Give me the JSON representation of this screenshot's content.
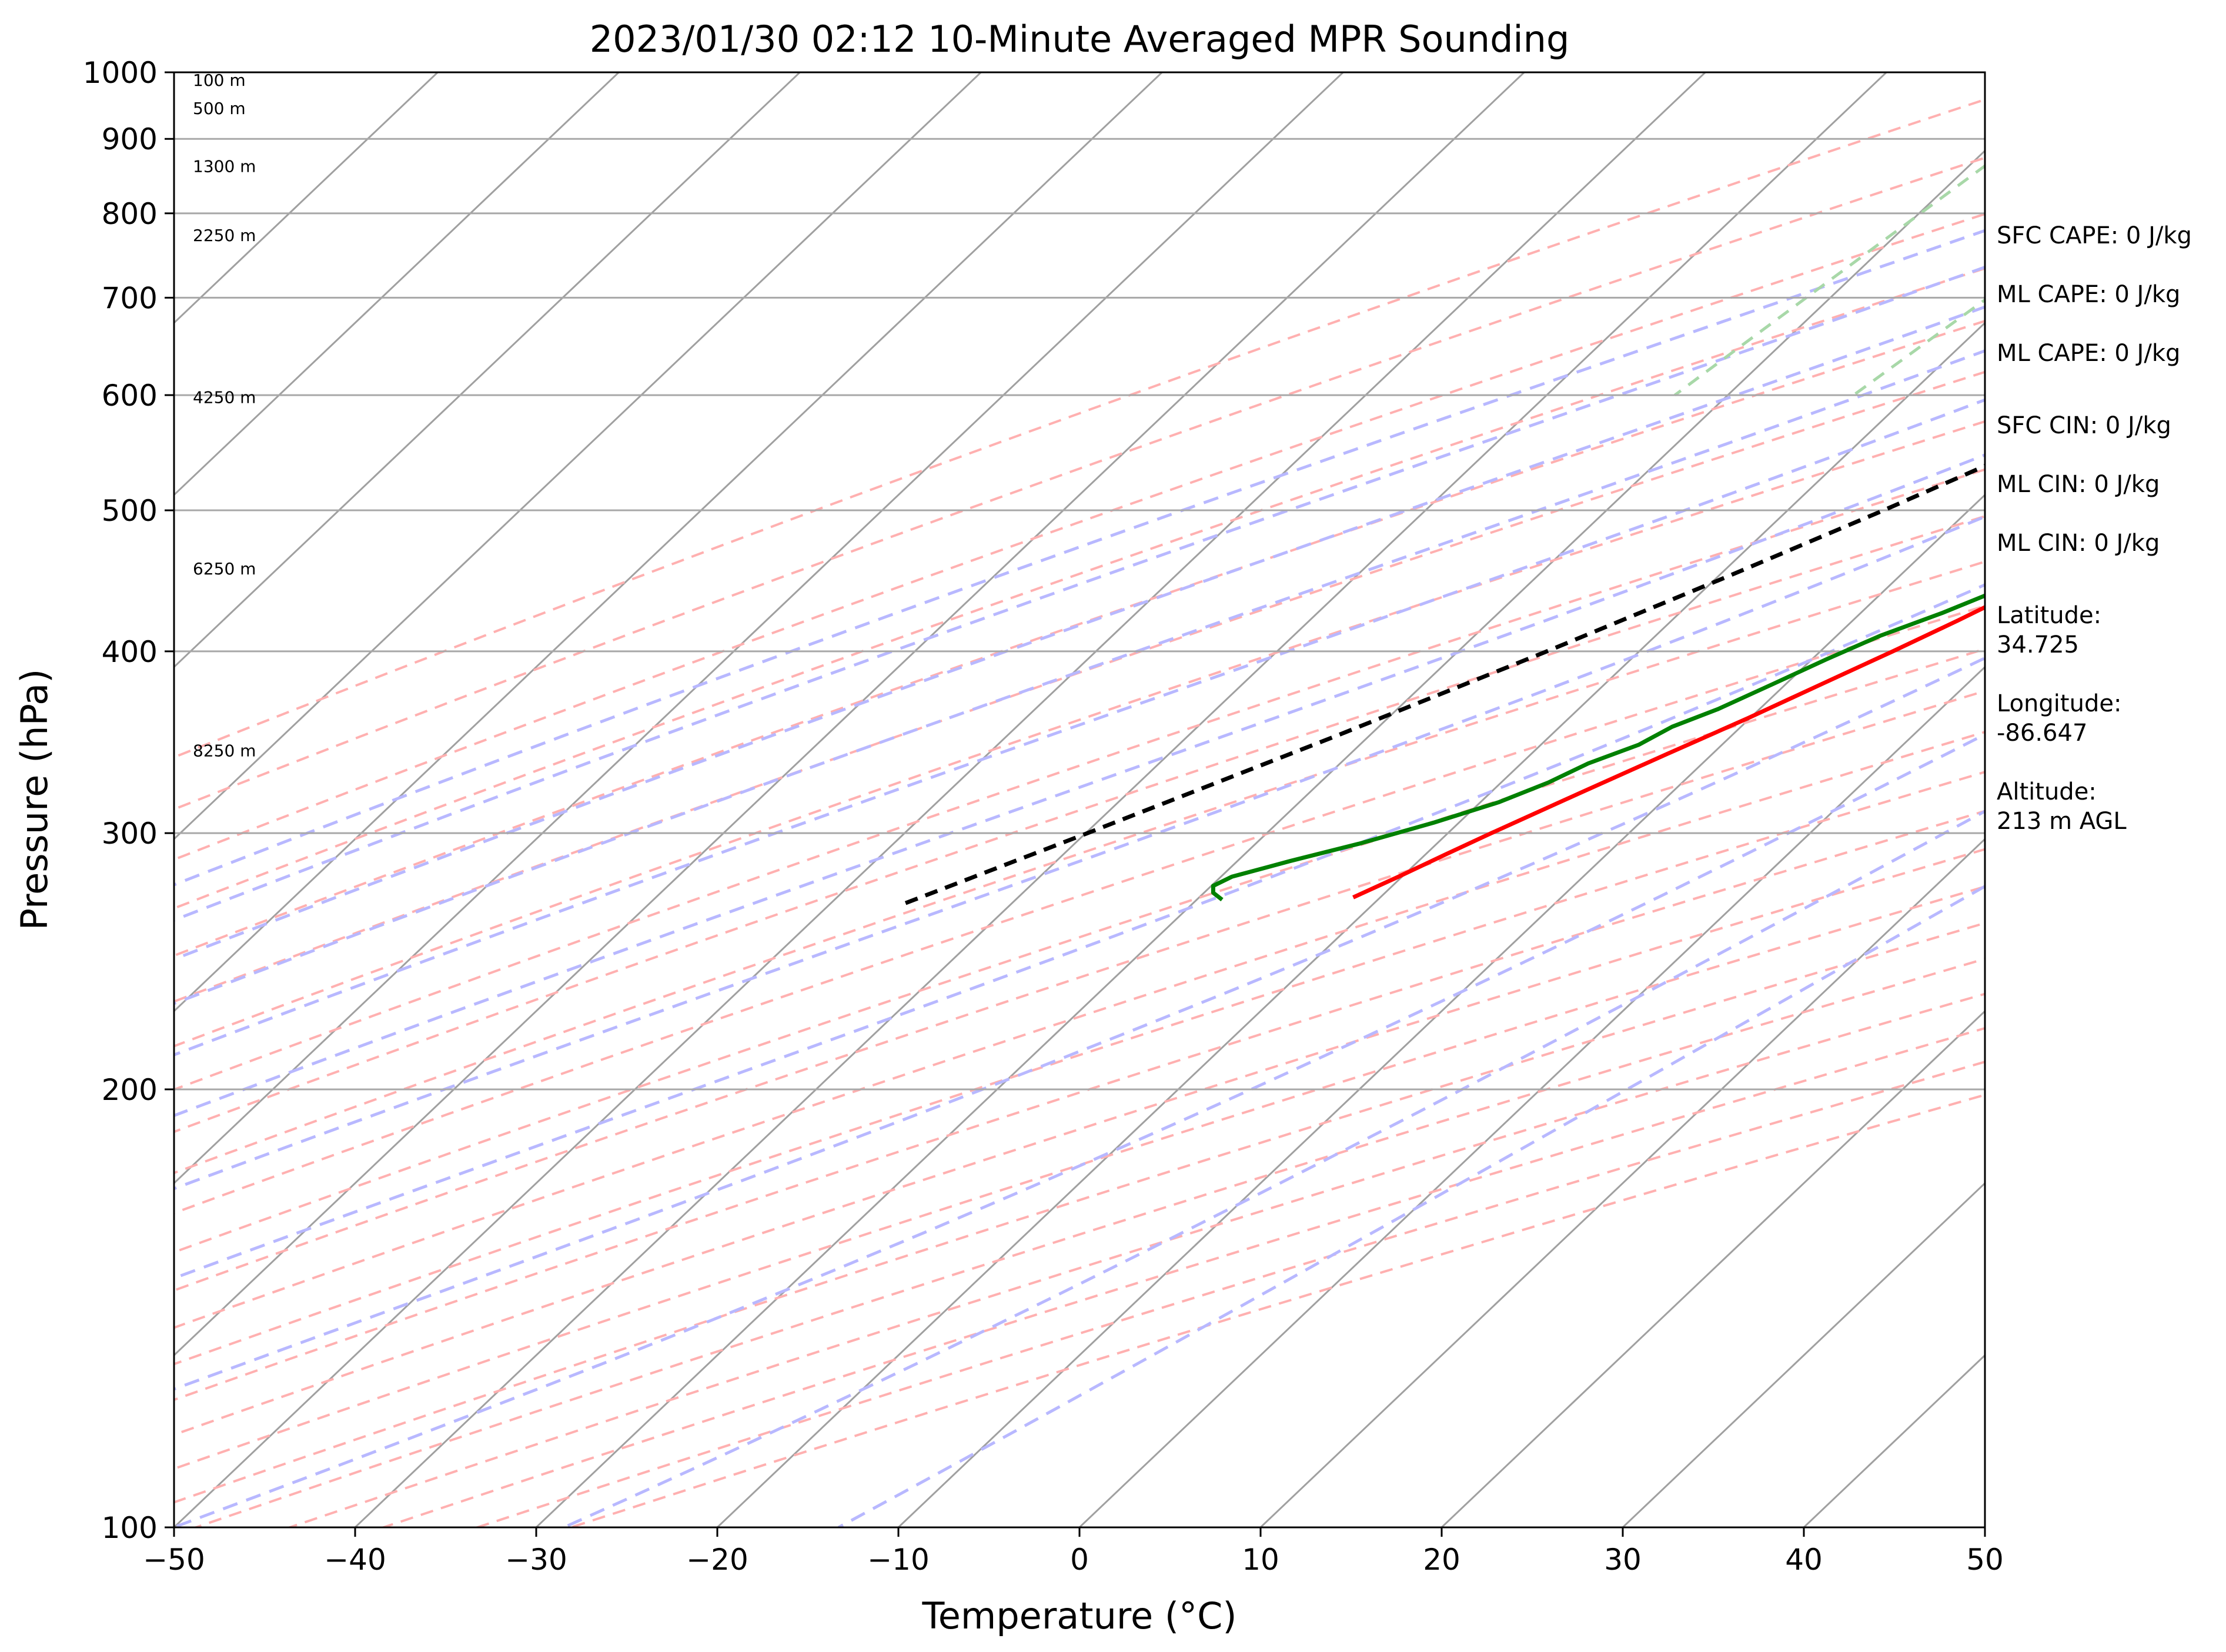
{
  "chart_data": {
    "type": "line",
    "title": "2023/01/30 02:12 10-Minute Averaged MPR Sounding",
    "xlabel": "Temperature (°C)",
    "ylabel": "Pressure (hPa)",
    "xlim": [
      -50,
      50
    ],
    "ylim": [
      1000,
      100
    ],
    "y_scale": "log",
    "grid": "on",
    "x_ticks": [
      "−50",
      "−40",
      "−30",
      "−20",
      "−10",
      "0",
      "10",
      "20",
      "30",
      "40",
      "50"
    ],
    "y_ticks": [
      "100",
      "200",
      "300",
      "400",
      "500",
      "600",
      "700",
      "800",
      "900",
      "1000"
    ],
    "height_labels": [
      {
        "label": "100 m",
        "pressure": 988
      },
      {
        "label": "500 m",
        "pressure": 945
      },
      {
        "label": "1300 m",
        "pressure": 862
      },
      {
        "label": "2250 m",
        "pressure": 773
      },
      {
        "label": "4250 m",
        "pressure": 598
      },
      {
        "label": "6250 m",
        "pressure": 456
      },
      {
        "label": "8250 m",
        "pressure": 342
      }
    ],
    "series": [
      {
        "name": "Temperature",
        "color": "#ff0000",
        "points": [
          [
            1000,
            10.2
          ],
          [
            990,
            11.6
          ],
          [
            975,
            12.8
          ],
          [
            960,
            13.9
          ],
          [
            945,
            14.5
          ],
          [
            930,
            14.6
          ],
          [
            915,
            14.4
          ],
          [
            900,
            14.1
          ],
          [
            880,
            13.6
          ],
          [
            860,
            13.1
          ],
          [
            840,
            12.5
          ],
          [
            820,
            11.8
          ],
          [
            800,
            11.0
          ],
          [
            780,
            10.4
          ],
          [
            760,
            9.8
          ],
          [
            740,
            9.2
          ],
          [
            720,
            8.6
          ],
          [
            700,
            8.0
          ],
          [
            680,
            7.5
          ],
          [
            660,
            7.0
          ],
          [
            640,
            6.6
          ],
          [
            620,
            6.2
          ],
          [
            600,
            5.6
          ],
          [
            580,
            4.8
          ],
          [
            560,
            3.8
          ],
          [
            540,
            2.9
          ],
          [
            520,
            1.9
          ],
          [
            500,
            0.8
          ],
          [
            480,
            -0.2
          ],
          [
            460,
            -1.3
          ],
          [
            440,
            -2.6
          ],
          [
            420,
            -4.2
          ],
          [
            400,
            -6.0
          ],
          [
            380,
            -8.0
          ],
          [
            360,
            -10.1
          ],
          [
            340,
            -12.5
          ],
          [
            320,
            -15.0
          ],
          [
            300,
            -17.6
          ],
          [
            290,
            -18.9
          ],
          [
            280,
            -20.2
          ],
          [
            271,
            -21.5
          ]
        ]
      },
      {
        "name": "Dewpoint",
        "color": "#008000",
        "points": [
          [
            1000,
            10.1
          ],
          [
            980,
            10.0
          ],
          [
            960,
            10.0
          ],
          [
            945,
            9.6
          ],
          [
            930,
            9.2
          ],
          [
            915,
            9.1
          ],
          [
            900,
            8.9
          ],
          [
            880,
            8.5
          ],
          [
            865,
            8.0
          ],
          [
            850,
            8.3
          ],
          [
            835,
            8.1
          ],
          [
            820,
            8.5
          ],
          [
            800,
            8.4
          ],
          [
            780,
            8.0
          ],
          [
            760,
            7.3
          ],
          [
            740,
            6.8
          ],
          [
            720,
            6.5
          ],
          [
            700,
            6.3
          ],
          [
            690,
            5.8
          ],
          [
            670,
            4.5
          ],
          [
            660,
            4.2
          ],
          [
            640,
            4.5
          ],
          [
            620,
            4.7
          ],
          [
            600,
            4.7
          ],
          [
            580,
            4.0
          ],
          [
            560,
            3.0
          ],
          [
            540,
            2.0
          ],
          [
            520,
            1.1
          ],
          [
            500,
            0.3
          ],
          [
            480,
            -0.7
          ],
          [
            460,
            -2.0
          ],
          [
            440,
            -3.8
          ],
          [
            425,
            -5.5
          ],
          [
            410,
            -7.6
          ],
          [
            395,
            -9.2
          ],
          [
            380,
            -10.7
          ],
          [
            365,
            -12.3
          ],
          [
            355,
            -13.8
          ],
          [
            345,
            -14.6
          ],
          [
            335,
            -16.3
          ],
          [
            325,
            -17.4
          ],
          [
            315,
            -19.0
          ],
          [
            305,
            -21.4
          ],
          [
            295,
            -24.3
          ],
          [
            287,
            -27.1
          ],
          [
            280,
            -29.4
          ],
          [
            276,
            -29.9
          ],
          [
            273,
            -29.5
          ],
          [
            270,
            -28.6
          ]
        ]
      },
      {
        "name": "Parcel",
        "color": "#000000",
        "style": "dashed",
        "points": [
          [
            1000,
            10.2
          ],
          [
            950,
            8.7
          ],
          [
            900,
            7.1
          ],
          [
            850,
            5.4
          ],
          [
            800,
            3.5
          ],
          [
            750,
            1.3
          ],
          [
            700,
            -1.1
          ],
          [
            650,
            -3.9
          ],
          [
            600,
            -7.0
          ],
          [
            550,
            -10.6
          ],
          [
            500,
            -14.7
          ],
          [
            450,
            -19.5
          ],
          [
            400,
            -25.1
          ],
          [
            350,
            -31.8
          ],
          [
            300,
            -39.9
          ],
          [
            275,
            -44.6
          ],
          [
            268,
            -46.0
          ]
        ]
      }
    ]
  },
  "info_panel": {
    "sfc_cape": "SFC CAPE: 0 J/kg",
    "ml_cape_1": "ML CAPE: 0 J/kg",
    "ml_cape_2": "ML CAPE: 0 J/kg",
    "sfc_cin": "SFC CIN: 0 J/kg",
    "ml_cin_1": "ML CIN: 0 J/kg",
    "ml_cin_2": "ML CIN: 0 J/kg",
    "latitude_label": "Latitude:",
    "latitude_value": "34.725",
    "longitude_label": "Longitude:",
    "longitude_value": "-86.647",
    "altitude_label": "Altitude:",
    "altitude_value": "213 m AGL"
  },
  "colors": {
    "isotherm": "#a0a0a0",
    "dry_adiabat": "#ffb0b0",
    "moist_adiabat": "#b8b8ff",
    "mixing_ratio": "#a8d8a8",
    "isobar": "#a8a8a8"
  }
}
